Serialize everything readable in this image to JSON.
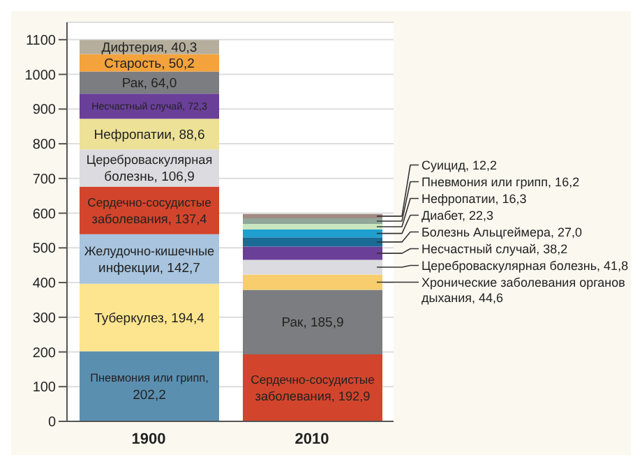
{
  "chart_data": {
    "type": "bar",
    "stacked": true,
    "categories": [
      "1900",
      "2010"
    ],
    "ylim": [
      0,
      1150
    ],
    "yticks": [
      0,
      100,
      200,
      300,
      400,
      500,
      600,
      700,
      800,
      900,
      1000,
      1100
    ],
    "grid": "y",
    "series": [
      {
        "color": "#5b8fb0",
        "values": [
          202.2,
          null
        ],
        "value_labels": [
          "Пневмония или грипп, 202,2",
          null
        ]
      },
      {
        "color": "#fde58f",
        "values": [
          194.4,
          null
        ],
        "value_labels": [
          "Туберкулез, 194,4",
          null
        ]
      },
      {
        "color": "#a8c4de",
        "values": [
          142.7,
          null
        ],
        "value_labels": [
          "Желудочно-кишечные инфекции, 142,7",
          null
        ]
      },
      {
        "color": "#d2452c",
        "values": [
          137.4,
          null
        ],
        "value_labels": [
          "Сердечно-сосудистые заболевания, 137,4",
          null
        ]
      },
      {
        "color": "#dcdce0",
        "values": [
          106.9,
          null
        ],
        "value_labels": [
          "Цереброваскулярная болезнь, 106,9",
          null
        ]
      },
      {
        "color": "#ece196",
        "values": [
          88.6,
          null
        ],
        "value_labels": [
          "Нефропатии, 88,6",
          null
        ]
      },
      {
        "color": "#6a3f98",
        "values": [
          72.3,
          null
        ],
        "value_labels": [
          "Несчастный случай, 72,3",
          null
        ]
      },
      {
        "color": "#7c7d80",
        "values": [
          64.0,
          null
        ],
        "value_labels": [
          "Рак, 64,0",
          null
        ]
      },
      {
        "color": "#f3a23c",
        "values": [
          50.2,
          null
        ],
        "value_labels": [
          "Старость, 50,2",
          null
        ]
      },
      {
        "color": "#b5ae9c",
        "values": [
          40.3,
          null
        ],
        "value_labels": [
          "Дифтерия, 40,3",
          null
        ]
      },
      {
        "color": "#d2452c",
        "values": [
          null,
          192.9
        ],
        "value_labels": [
          null,
          "Сердечно-сосудистые заболевания, 192,9"
        ]
      },
      {
        "color": "#7c7d80",
        "values": [
          null,
          185.9
        ],
        "value_labels": [
          null,
          "Рак, 185,9"
        ]
      },
      {
        "color": "#f7cd6e",
        "values": [
          null,
          44.6
        ],
        "value_labels": [
          null,
          "Хронические заболевания органов дыхания, 44,6"
        ]
      },
      {
        "color": "#dcdce0",
        "values": [
          null,
          41.8
        ],
        "value_labels": [
          null,
          "Цереброваскулярная болезнь, 41,8"
        ]
      },
      {
        "color": "#6a3f98",
        "values": [
          null,
          38.2
        ],
        "value_labels": [
          null,
          "Несчастный случай, 38,2"
        ]
      },
      {
        "color": "#1a6a96",
        "values": [
          null,
          27.0
        ],
        "value_labels": [
          null,
          "Болезнь Альцгеймера, 27,0"
        ]
      },
      {
        "color": "#1f9fd0",
        "values": [
          null,
          22.3
        ],
        "value_labels": [
          null,
          "Диабет, 22,3"
        ]
      },
      {
        "color": "#c9e6c0",
        "values": [
          null,
          16.3
        ],
        "value_labels": [
          null,
          "Нефропатии, 16,3"
        ]
      },
      {
        "color": "#8fa89a",
        "values": [
          null,
          16.2
        ],
        "value_labels": [
          null,
          "Пневмония или грипп, 16,2"
        ]
      },
      {
        "color": "#a28a82",
        "values": [
          null,
          12.2
        ],
        "value_labels": [
          null,
          "Суицид, 12,2"
        ]
      }
    ]
  }
}
